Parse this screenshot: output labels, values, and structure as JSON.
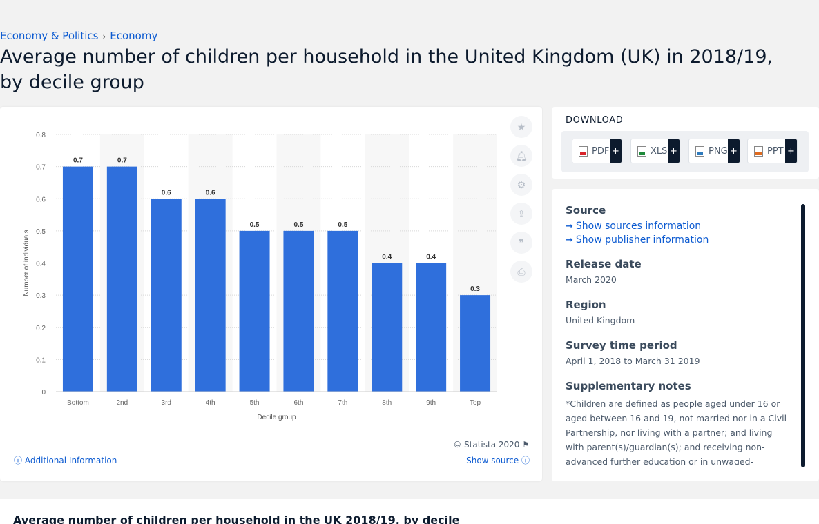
{
  "breadcrumb": [
    "Economy & Politics",
    "Economy"
  ],
  "page_title": "Average number of children per household in the United Kingdom (UK) in 2018/19, by decile group",
  "download": {
    "title": "DOWNLOAD",
    "buttons": [
      {
        "label": "PDF",
        "plus": "+",
        "icon": "pdf-file-icon"
      },
      {
        "label": "XLS",
        "plus": "+",
        "icon": "xls-file-icon"
      },
      {
        "label": "PNG",
        "plus": "+",
        "icon": "png-file-icon"
      },
      {
        "label": "PPT",
        "plus": "+",
        "icon": "ppt-file-icon"
      }
    ]
  },
  "side_icons": [
    "star-icon",
    "bell-icon",
    "gear-icon",
    "share-icon",
    "quote-icon",
    "print-icon"
  ],
  "chart_footer": {
    "copyright": "© Statista 2020",
    "additional_info": "Additional Information",
    "show_source": "Show source"
  },
  "info": {
    "source_heading": "Source",
    "show_sources": "Show sources information",
    "show_publisher": "Show publisher information",
    "release_heading": "Release date",
    "release_value": "March 2020",
    "region_heading": "Region",
    "region_value": "United Kingdom",
    "survey_heading": "Survey time period",
    "survey_value": "April 1, 2018 to March 31 2019",
    "notes_heading": "Supplementary notes",
    "notes_value": "*Children are defined as people aged under 16 or aged between 16 and 19, not married nor in a Civil Partnership, nor living with a partner; and living with parent(s)/guardian(s); and receiving non-advanced further education or in unwaged-government training."
  },
  "bottom_title": "Average number of children per household in the UK 2018/19, by decile",
  "colors": {
    "bar": "#2f6fdc",
    "accent": "#0d5bd1",
    "band": "#f7f7f7"
  },
  "chart_data": {
    "type": "bar",
    "categories": [
      "Bottom",
      "2nd",
      "3rd",
      "4th",
      "5th",
      "6th",
      "7th",
      "8th",
      "9th",
      "Top"
    ],
    "values": [
      0.7,
      0.7,
      0.6,
      0.6,
      0.5,
      0.5,
      0.5,
      0.4,
      0.4,
      0.3
    ],
    "data_labels": [
      "0.7",
      "0.7",
      "0.6",
      "0.6",
      "0.5",
      "0.5",
      "0.5",
      "0.4",
      "0.4",
      "0.3"
    ],
    "xlabel": "Decile group",
    "ylabel": "Number of individuals",
    "ylim": [
      0,
      0.8
    ],
    "yticks": [
      0,
      0.1,
      0.2,
      0.3,
      0.4,
      0.5,
      0.6,
      0.7,
      0.8
    ],
    "ytick_labels": [
      "0",
      "0.1",
      "0.2",
      "0.3",
      "0.4",
      "0.5",
      "0.6",
      "0.7",
      "0.8"
    ],
    "grid": true,
    "legend": "none"
  }
}
